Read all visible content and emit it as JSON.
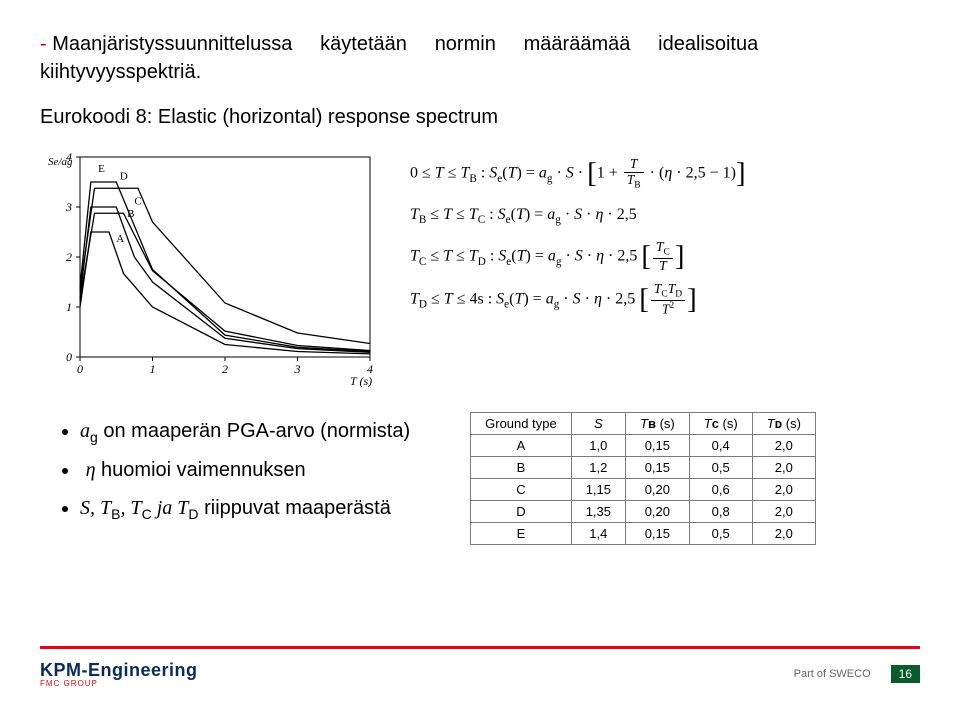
{
  "intro": {
    "dash": "-",
    "text_parts": [
      "Maanjäristyssuunnittelussa",
      "käytetään",
      "normin",
      "määräämää",
      "idealisoitua"
    ],
    "text_line2": "kiihtyvyysspektriä."
  },
  "subtitle": "Eurokoodi 8: Elastic (horizontal) response spectrum",
  "chart": {
    "type": "line",
    "xlabel": "T (s)",
    "ylabel": "Se/ag",
    "xlim": [
      0,
      4
    ],
    "ylim": [
      0,
      4
    ],
    "xticks": [
      0,
      1,
      2,
      3,
      4
    ],
    "yticks": [
      0,
      1,
      2,
      3,
      4
    ],
    "curve_labels": [
      "A",
      "B",
      "C",
      "D",
      "E"
    ],
    "curves": {
      "A": [
        [
          0,
          1.0
        ],
        [
          0.15,
          2.5
        ],
        [
          0.4,
          2.5
        ],
        [
          0.6,
          1.67
        ],
        [
          1.0,
          1.0
        ],
        [
          2.0,
          0.25
        ],
        [
          3.0,
          0.11
        ],
        [
          4.0,
          0.063
        ]
      ],
      "B": [
        [
          0,
          1.2
        ],
        [
          0.15,
          3.0
        ],
        [
          0.5,
          3.0
        ],
        [
          0.75,
          2.0
        ],
        [
          1.0,
          1.5
        ],
        [
          2.0,
          0.375
        ],
        [
          3.0,
          0.167
        ],
        [
          4.0,
          0.094
        ]
      ],
      "C": [
        [
          0,
          1.15
        ],
        [
          0.2,
          2.875
        ],
        [
          0.6,
          2.875
        ],
        [
          1.0,
          1.725
        ],
        [
          2.0,
          0.518
        ],
        [
          3.0,
          0.23
        ],
        [
          4.0,
          0.129
        ]
      ],
      "D": [
        [
          0,
          1.35
        ],
        [
          0.2,
          3.375
        ],
        [
          0.8,
          3.375
        ],
        [
          1.0,
          2.7
        ],
        [
          2.0,
          1.08
        ],
        [
          3.0,
          0.48
        ],
        [
          4.0,
          0.27
        ]
      ],
      "E": [
        [
          0,
          1.4
        ],
        [
          0.15,
          3.5
        ],
        [
          0.5,
          3.5
        ],
        [
          1.0,
          1.75
        ],
        [
          2.0,
          0.438
        ],
        [
          3.0,
          0.194
        ],
        [
          4.0,
          0.109
        ]
      ]
    },
    "line_color": "#000000",
    "background": "#ffffff",
    "axis_color": "#000000"
  },
  "equations": {
    "eq1_range": "0 ≤ T ≤ T",
    "eq1_sub": "B",
    "eq2_range_l": "T",
    "eq2_sub_l": "B",
    "eq2_range_r": "T",
    "eq2_sub_r": "C",
    "eq3_sub_l": "C",
    "eq3_sub_r": "D",
    "factor": "2,5",
    "four_s": "4s"
  },
  "bullets": {
    "b1_var": "a",
    "b1_sub": "g",
    "b1_text": " on maaperän PGA-arvo (normista)",
    "b2_var": "η",
    "b2_text": " huomioi vaimennuksen",
    "b3_pre": "S, T",
    "b3_s1": "B",
    "b3_s2": "C",
    "b3_s3": "D",
    "b3_mid1": ", T",
    "b3_mid2": " ja T",
    "b3_text": " riippuvat maaperästä"
  },
  "params_table": {
    "headers": [
      "Ground type",
      "S",
      "T_B (s)",
      "T_C (s)",
      "T_D (s)"
    ],
    "header_subs": [
      "",
      "",
      "B",
      "C",
      "D"
    ],
    "rows": [
      [
        "A",
        "1,0",
        "0,15",
        "0,4",
        "2,0"
      ],
      [
        "B",
        "1,2",
        "0,15",
        "0,5",
        "2,0"
      ],
      [
        "C",
        "1,15",
        "0,20",
        "0,6",
        "2,0"
      ],
      [
        "D",
        "1,35",
        "0,20",
        "0,8",
        "2,0"
      ],
      [
        "E",
        "1,4",
        "0,15",
        "0,5",
        "2,0"
      ]
    ]
  },
  "footer": {
    "logo_main": "KPM-Engineering",
    "logo_sub": "FMC GROUP",
    "part_of": "Part of SWECO",
    "page": "16"
  }
}
